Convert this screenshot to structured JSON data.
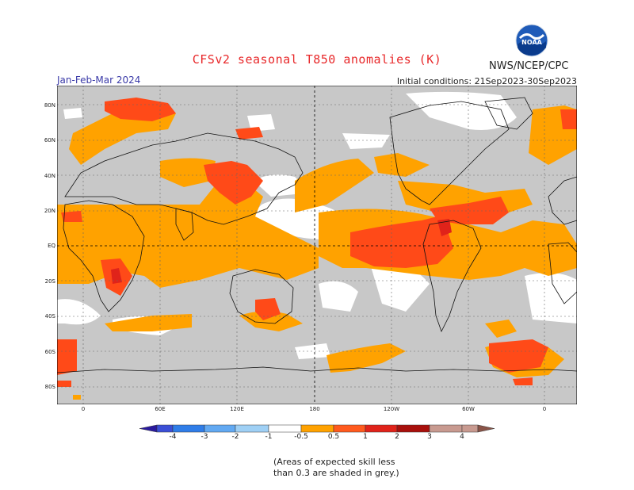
{
  "title": "CFSv2 seasonal T850 anomalies (K)",
  "agency": "NWS/NCEP/CPC",
  "season": "Jan-Feb-Mar 2024",
  "initial_conditions": "Initial conditions: 21Sep2023-30Sep2023",
  "logo_text": "NOAA",
  "lat_labels": [
    "80N",
    "60N",
    "40N",
    "20N",
    "EQ",
    "20S",
    "40S",
    "60S",
    "80S"
  ],
  "lon_labels": [
    "0",
    "60E",
    "120E",
    "180",
    "120W",
    "60W",
    "0"
  ],
  "colorbar": {
    "labels": [
      "-4",
      "-3",
      "-2",
      "-1",
      "-0.5",
      "0.5",
      "1",
      "2",
      "3",
      "4"
    ],
    "colors": [
      "#2a1a9e",
      "#3b4fd6",
      "#2f7de8",
      "#62a9f2",
      "#9fd0f5",
      "#ffffff",
      "#ffa200",
      "#ff5a1e",
      "#e0231a",
      "#a8100c",
      "#c89a90",
      "#8a5448"
    ]
  },
  "note_line1": "(Areas of expected skill less",
  "note_line2": "than 0.3 are shaded in grey.)",
  "colors": {
    "skill_grey": "#c8c8c8",
    "anom_05_1": "#ffa200",
    "anom_1_2": "#ff4a18",
    "anom_2_3": "#e0231a",
    "title_red": "#e8282a",
    "season_blue": "#3a3aa8"
  }
}
